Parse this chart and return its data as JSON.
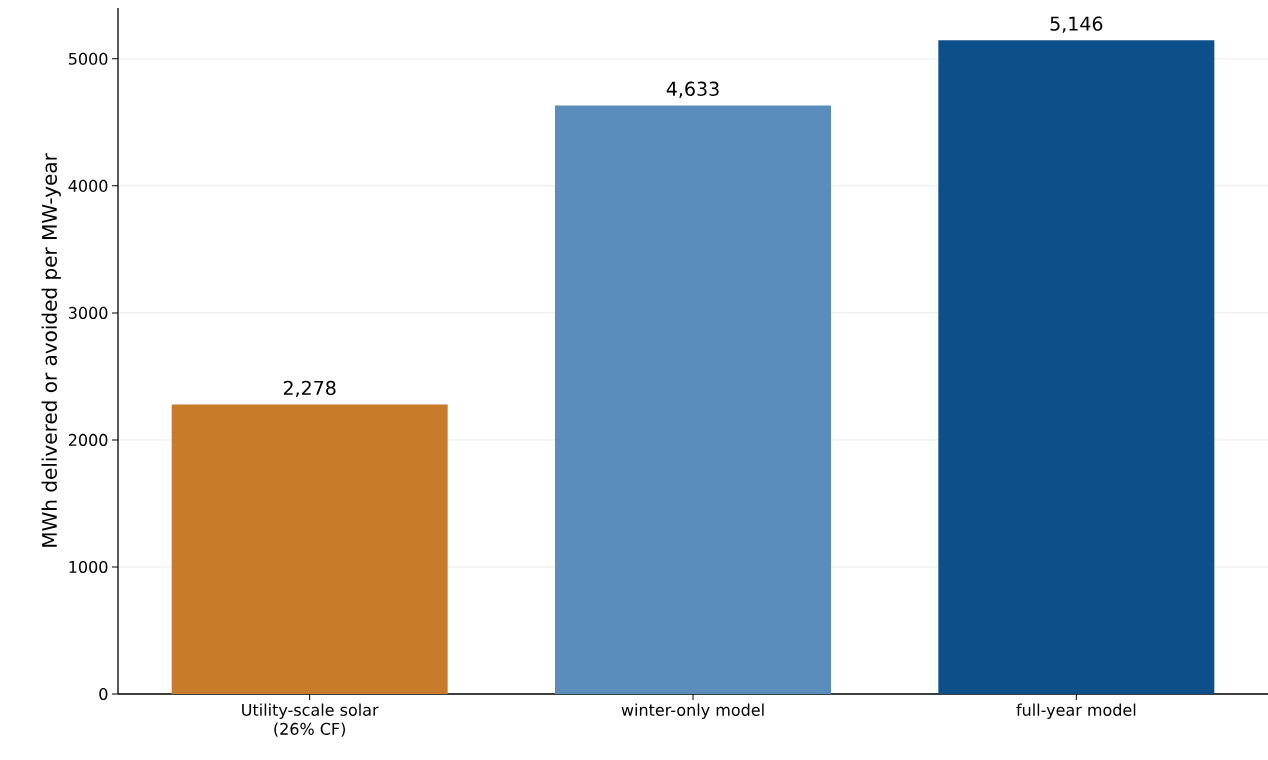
{
  "chart_data": {
    "type": "bar",
    "ylabel": "MWh delivered or avoided per MW-year",
    "categories": [
      "Utility-scale solar\n(26% CF)",
      "winter-only model",
      "full-year model"
    ],
    "values": [
      2278,
      4633,
      5146
    ],
    "colors": [
      "#c87b2b",
      "#5b8dbc",
      "#0c4f89"
    ],
    "value_labels": [
      "2,278",
      "4,633",
      "5,146"
    ],
    "ylim": [
      0,
      5400
    ],
    "yticks": [
      0,
      1000,
      2000,
      3000,
      4000,
      5000
    ],
    "grid": "y"
  }
}
